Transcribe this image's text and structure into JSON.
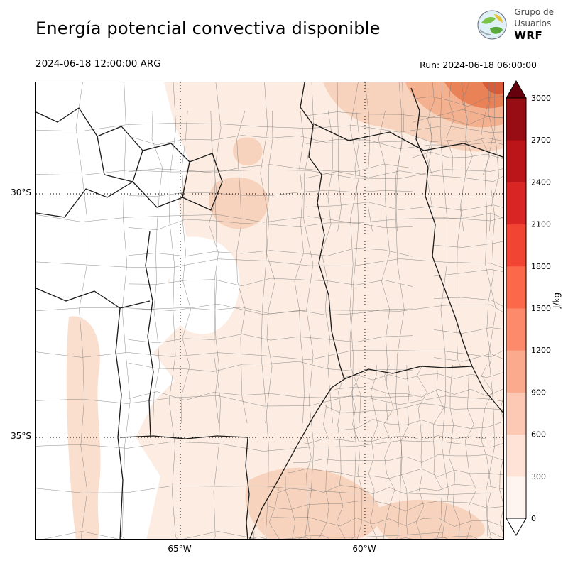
{
  "header": {
    "title": "Energía potencial convectiva disponible",
    "date": "2024-06-18 12:00:00 ARG",
    "run": "Run: 2024-06-18 06:00:00",
    "logo": {
      "line1": "Grupo de",
      "line2": "Usuarios",
      "line3": "WRF"
    }
  },
  "map": {
    "y_ticks": [
      {
        "label": "30°S"
      },
      {
        "label": "35°S"
      }
    ],
    "x_ticks": [
      {
        "label": "65°W"
      },
      {
        "label": "60°W"
      }
    ]
  },
  "colorbar": {
    "unit": "J/kg",
    "ticks": [
      "0",
      "300",
      "600",
      "900",
      "1200",
      "1500",
      "1800",
      "2100",
      "2400",
      "2700",
      "3000"
    ],
    "segment_colors_bottom_to_top": [
      "#fff5f0",
      "#fee3d6",
      "#fdc9b4",
      "#fcaa8e",
      "#fc8a6b",
      "#fb694a",
      "#f14432",
      "#d92523",
      "#bb151a",
      "#980c13"
    ],
    "over_color": "#67000d",
    "under_color": "#ffffff"
  },
  "chart_data": {
    "type": "heatmap",
    "title": "Energía potencial convectiva disponible",
    "variable": "CAPE (convective available potential energy)",
    "unit": "J/kg",
    "valid_time": "2024-06-18 12:00:00 ARG",
    "run_time": "2024-06-18 06:00:00",
    "colorbar_levels": [
      0,
      300,
      600,
      900,
      1200,
      1500,
      1800,
      2100,
      2400,
      2700,
      3000
    ],
    "lat_gridlines": [
      "30°S",
      "35°S"
    ],
    "lon_gridlines": [
      "65°W",
      "60°W"
    ],
    "region": "Central-northern Argentina with province and department boundaries",
    "pattern": "CAPE mostly 0-600 J/kg over the central and eastern plains, near 0 (white) over the western Andes-foothill provinces, local maxima of roughly 900-1500 J/kg in the far northeast corner and weak secondary patches (300-600 J/kg) over central Córdoba, the western strip and southern Buenos Aires"
  }
}
